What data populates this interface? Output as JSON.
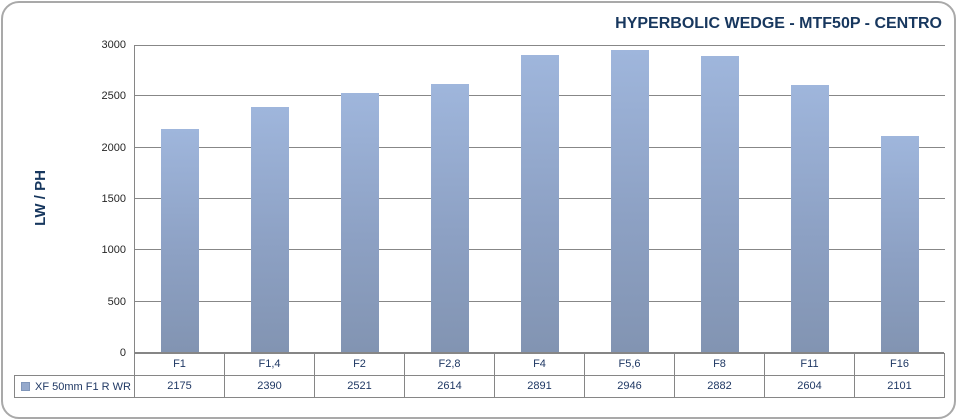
{
  "chart_data": {
    "type": "bar",
    "title": "HYPERBOLIC WEDGE - MTF50P - CENTRO",
    "xlabel": "",
    "ylabel": "LW / PH",
    "categories": [
      "F1",
      "F1,4",
      "F2",
      "F2,8",
      "F4",
      "F5,6",
      "F8",
      "F11",
      "F16"
    ],
    "series": [
      {
        "name": "XF 50mm F1 R WR",
        "values": [
          2175,
          2390,
          2521,
          2614,
          2891,
          2946,
          2882,
          2604,
          2101
        ]
      }
    ],
    "ylim": [
      0,
      3000
    ],
    "yticks": [
      0,
      500,
      1000,
      1500,
      2000,
      2500,
      3000
    ],
    "grid": true,
    "legend_position": "bottom-left",
    "data_table_shown": true,
    "colors": {
      "bar_top": "#9fb6dc",
      "bar_bottom": "#8294b2",
      "legend_key": "#95a9cc",
      "title_text": "#17375e",
      "table_text": "#1f3864",
      "tick_text": "#262626",
      "grid_line": "#878787",
      "frame_border": "#a9a9a9",
      "background": "#ffffff"
    }
  }
}
